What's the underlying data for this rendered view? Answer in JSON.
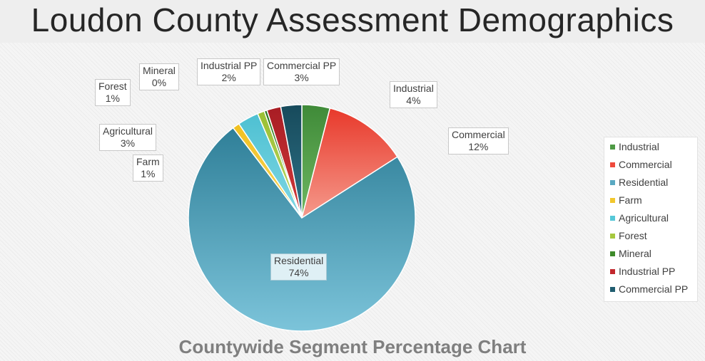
{
  "page": {
    "title": "Loudon County Assessment Demographics"
  },
  "chart_data": {
    "type": "pie",
    "title": "Countywide Segment Percentage Chart",
    "legend_position": "right",
    "start": "top, clockwise",
    "slices": [
      {
        "name": "Industrial",
        "value": 4,
        "label": "4%",
        "color": "#4e9a45"
      },
      {
        "name": "Commercial",
        "value": 12,
        "label": "12%",
        "color": "#ef4a3c"
      },
      {
        "name": "Residential",
        "value": 74,
        "label": "74%",
        "color": "#5aa9c2"
      },
      {
        "name": "Farm",
        "value": 1,
        "label": "1%",
        "color": "#f2c72d"
      },
      {
        "name": "Agricultural",
        "value": 3,
        "label": "3%",
        "color": "#56c8d8"
      },
      {
        "name": "Forest",
        "value": 1,
        "label": "1%",
        "color": "#a6c83e"
      },
      {
        "name": "Mineral",
        "value": 0,
        "label": "0%",
        "color": "#3d8a2a"
      },
      {
        "name": "Industrial PP",
        "value": 2,
        "label": "2%",
        "color": "#c2272d"
      },
      {
        "name": "Commercial PP",
        "value": 3,
        "label": "3%",
        "color": "#205d70"
      }
    ]
  }
}
